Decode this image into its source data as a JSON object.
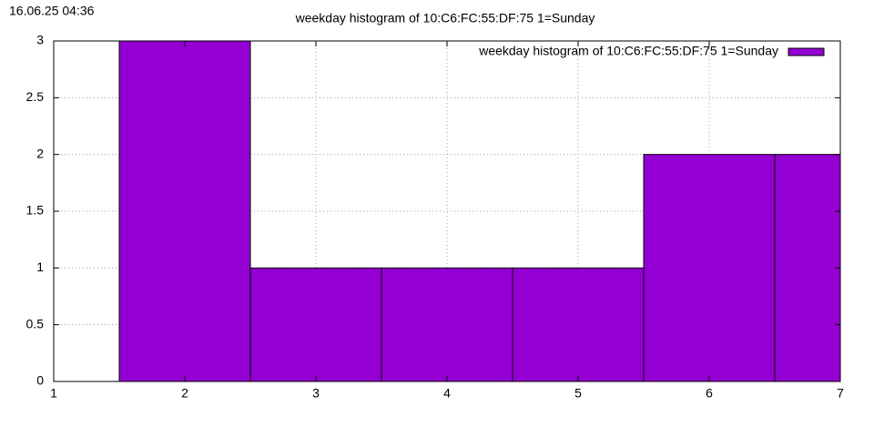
{
  "timestamp": "16.06.25 04:36",
  "chart_data": {
    "type": "bar",
    "title": "weekday histogram of 10:C6:FC:55:DF:75 1=Sunday",
    "x": [
      2,
      3,
      4,
      5,
      6,
      7
    ],
    "series": [
      {
        "name": "weekday histogram of 10:C6:FC:55:DF:75 1=Sunday",
        "color": "#9400d3",
        "values": [
          3,
          1,
          1,
          1,
          2,
          2
        ]
      }
    ],
    "xlim": [
      1,
      7
    ],
    "xticks": [
      1,
      2,
      3,
      4,
      5,
      6,
      7
    ],
    "ylim": [
      0,
      3
    ],
    "yticks": [
      0,
      0.5,
      1,
      1.5,
      2,
      2.5,
      3
    ],
    "grid": true,
    "legend": "top-right"
  }
}
